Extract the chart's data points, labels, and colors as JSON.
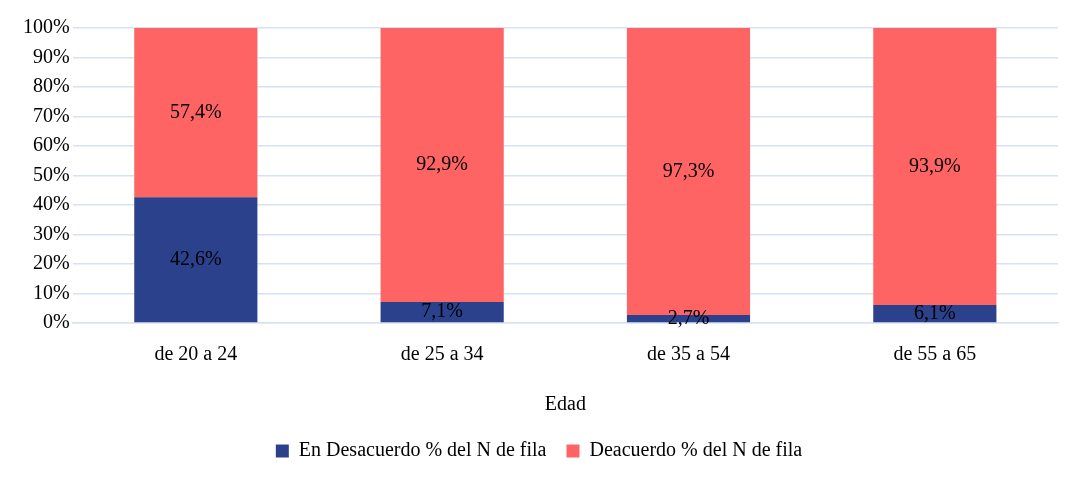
{
  "chart_data": {
    "type": "bar",
    "stacked": true,
    "categories": [
      "de 20 a 24",
      "de 25 a 34",
      "de 35 a 54",
      "de 55 a 65"
    ],
    "xlabel": "Edad",
    "series": [
      {
        "name": "En Desacuerdo % del N de fila",
        "color": "#2b418c",
        "values": [
          42.6,
          7.1,
          2.7,
          6.1
        ],
        "value_labels": [
          "42,6%",
          "7,1%",
          "2,7%",
          "6,1%"
        ]
      },
      {
        "name": "Deacuerdo % del N de fila",
        "color": "#ff6464",
        "values": [
          57.4,
          92.9,
          97.3,
          93.9
        ],
        "value_labels": [
          "57,4%",
          "92,9%",
          "97,3%",
          "93,9%"
        ]
      }
    ],
    "ylim": [
      0,
      100
    ],
    "yticks": [
      {
        "value": 0,
        "label": "0%"
      },
      {
        "value": 10,
        "label": "10%"
      },
      {
        "value": 20,
        "label": "20%"
      },
      {
        "value": 30,
        "label": "30%"
      },
      {
        "value": 40,
        "label": "40%"
      },
      {
        "value": 50,
        "label": "50%"
      },
      {
        "value": 60,
        "label": "60%"
      },
      {
        "value": 70,
        "label": "70%"
      },
      {
        "value": 80,
        "label": "80%"
      },
      {
        "value": 90,
        "label": "90%"
      },
      {
        "value": 100,
        "label": "100%"
      }
    ],
    "grid": "y",
    "legend": "bottom"
  }
}
